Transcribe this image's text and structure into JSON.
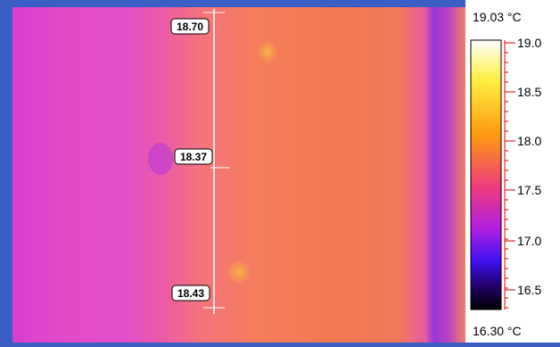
{
  "image": {
    "profile_labels": [
      "18.70",
      "18.37",
      "18.43"
    ]
  },
  "scale": {
    "max_label": "19.03 °C",
    "min_label": "16.30 °C",
    "tick_labels": [
      "19.0",
      "18.5",
      "18.0",
      "17.5",
      "17.0",
      "16.5"
    ]
  }
}
